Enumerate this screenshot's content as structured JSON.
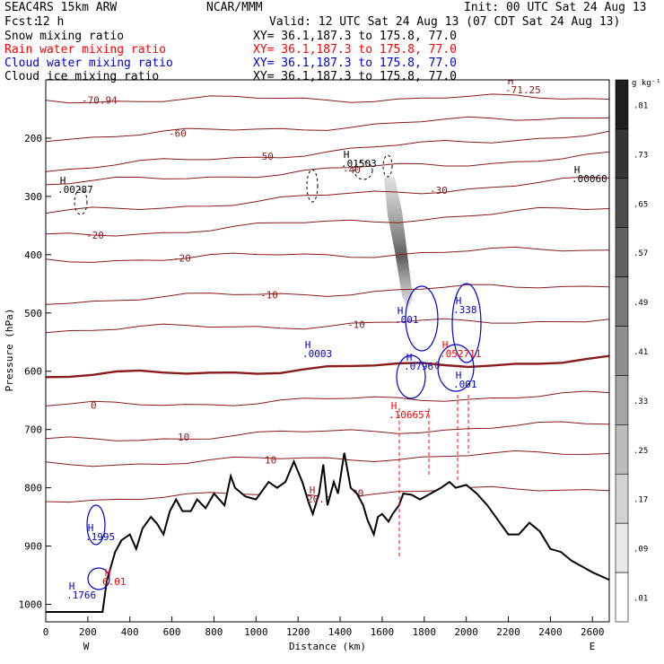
{
  "header": {
    "model": "SEAC4RS 15km ARW",
    "org": "NCAR/MMM",
    "init": "Init: 00 UTC Sat 24 Aug 13",
    "fcst_label": "Fcst:",
    "fcst_value": "12 h",
    "valid": "Valid: 12 UTC Sat 24 Aug 13 (07 CDT Sat 24 Aug 13)"
  },
  "legend": [
    {
      "label": "Snow mixing ratio",
      "xy": "XY=  36.1,187.3 to 175.8, 77.0",
      "color": "#000000"
    },
    {
      "label": "Rain water mixing ratio",
      "xy": "XY=  36.1,187.3 to 175.8, 77.0",
      "color": "#ff0000"
    },
    {
      "label": "Cloud water mixing ratio",
      "xy": "XY=  36.1,187.3 to 175.8, 77.0",
      "color": "#0000cc"
    },
    {
      "label": "Cloud ice mixing ratio",
      "xy": "XY=  36.1,187.3 to 175.8, 77.0",
      "color": "#000000"
    }
  ],
  "colorbar": {
    "unit": "g kg⁻¹",
    "labels": [
      ".81",
      ".73",
      ".65",
      ".57",
      ".49",
      ".41",
      ".33",
      ".25",
      ".17",
      ".09",
      ".01"
    ]
  },
  "chart_data": {
    "type": "contour-cross-section",
    "xlabel": "Distance (km)",
    "ylabel": "Pressure (hPa)",
    "xlim": [
      0,
      2680
    ],
    "ylim": [
      100,
      1030
    ],
    "xticks": [
      0,
      200,
      400,
      600,
      800,
      1000,
      1200,
      1400,
      1600,
      1800,
      2000,
      2200,
      2400,
      2600
    ],
    "yticks": [
      200,
      300,
      400,
      500,
      600,
      700,
      800,
      900,
      1000
    ],
    "x_end_labels": {
      "left": "W",
      "right": "E"
    },
    "terrain": [
      [
        0,
        1013
      ],
      [
        270,
        1013
      ],
      [
        290,
        960
      ],
      [
        330,
        910
      ],
      [
        360,
        890
      ],
      [
        400,
        880
      ],
      [
        430,
        905
      ],
      [
        460,
        870
      ],
      [
        500,
        850
      ],
      [
        530,
        862
      ],
      [
        560,
        880
      ],
      [
        590,
        840
      ],
      [
        620,
        820
      ],
      [
        650,
        840
      ],
      [
        690,
        840
      ],
      [
        720,
        820
      ],
      [
        760,
        835
      ],
      [
        800,
        810
      ],
      [
        850,
        830
      ],
      [
        880,
        780
      ],
      [
        900,
        800
      ],
      [
        950,
        815
      ],
      [
        1000,
        820
      ],
      [
        1060,
        790
      ],
      [
        1100,
        800
      ],
      [
        1140,
        790
      ],
      [
        1180,
        755
      ],
      [
        1220,
        790
      ],
      [
        1250,
        825
      ],
      [
        1270,
        845
      ],
      [
        1300,
        810
      ],
      [
        1320,
        760
      ],
      [
        1340,
        830
      ],
      [
        1370,
        790
      ],
      [
        1390,
        810
      ],
      [
        1420,
        740
      ],
      [
        1450,
        800
      ],
      [
        1480,
        810
      ],
      [
        1510,
        830
      ],
      [
        1530,
        855
      ],
      [
        1560,
        880
      ],
      [
        1580,
        850
      ],
      [
        1600,
        845
      ],
      [
        1630,
        858
      ],
      [
        1650,
        845
      ],
      [
        1680,
        830
      ],
      [
        1700,
        810
      ],
      [
        1740,
        812
      ],
      [
        1780,
        820
      ],
      [
        1830,
        810
      ],
      [
        1880,
        800
      ],
      [
        1920,
        790
      ],
      [
        1950,
        800
      ],
      [
        2000,
        795
      ],
      [
        2050,
        810
      ],
      [
        2100,
        830
      ],
      [
        2150,
        855
      ],
      [
        2200,
        880
      ],
      [
        2250,
        880
      ],
      [
        2300,
        860
      ],
      [
        2350,
        875
      ],
      [
        2400,
        905
      ],
      [
        2450,
        910
      ],
      [
        2500,
        925
      ],
      [
        2550,
        935
      ],
      [
        2600,
        945
      ],
      [
        2680,
        958
      ]
    ],
    "temperature_contours": [
      {
        "label": "-70.94",
        "p_left": 135,
        "p_right": 130
      },
      {
        "label": "-60",
        "p_left": 200,
        "p_right": 160
      },
      {
        "label": "-50",
        "p_left": 255,
        "p_right": 190
      },
      {
        "label": "-40",
        "p_left": 280,
        "p_right": 230
      },
      {
        "label": "-30",
        "p_left": 330,
        "p_right": 270
      },
      {
        "label": "-20",
        "p_left": 370,
        "p_right": 320
      },
      {
        "label": "-20",
        "p_left": 410,
        "p_right": 390
      },
      {
        "label": "-10",
        "p_left": 480,
        "p_right": 450
      },
      {
        "label": "-10",
        "p_left": 530,
        "p_right": 510
      },
      {
        "label": "0",
        "p_left": 610,
        "p_right": 580,
        "bold": true
      },
      {
        "label": "0",
        "p_left": 660,
        "p_right": 640
      },
      {
        "label": "10",
        "p_left": 720,
        "p_right": 690
      },
      {
        "label": "10",
        "p_left": 760,
        "p_right": 740
      },
      {
        "label": "20",
        "p_left": 820,
        "p_right": 800
      }
    ],
    "annotations": [
      {
        "text": "-71.25",
        "color": "#8b1a1a"
      },
      {
        "text": ".00287",
        "color": "#000000"
      },
      {
        "text": ".01503",
        "color": "#000000"
      },
      {
        "text": ".00060",
        "color": "#000000"
      },
      {
        "text": ".0003",
        "color": "#0000cc"
      },
      {
        "text": ".001",
        "color": "#0000cc"
      },
      {
        "text": ".338",
        "color": "#0000cc"
      },
      {
        "text": ".0796",
        "color": "#0000cc"
      },
      {
        "text": ".001",
        "color": "#0000cc"
      },
      {
        "text": ".052711",
        "color": "#ff0000"
      },
      {
        "text": ".106657",
        "color": "#ff0000"
      },
      {
        "text": ".1995",
        "color": "#0000cc"
      },
      {
        "text": ".1766",
        "color": "#0000cc"
      },
      {
        "text": "6.01",
        "color": "#ff0000"
      },
      {
        "text": "20.",
        "color": "#8b1a1a"
      }
    ]
  }
}
